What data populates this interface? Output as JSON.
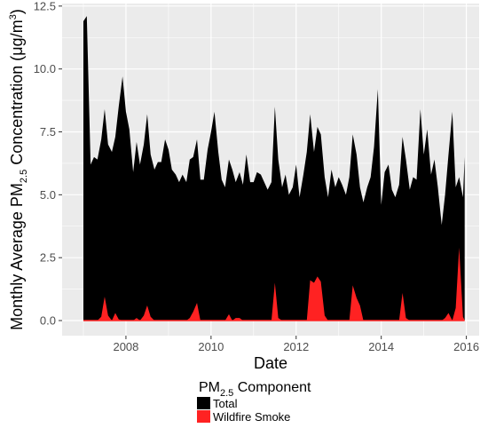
{
  "chart_data": {
    "type": "area",
    "title": "",
    "xlabel": "Date",
    "ylabel": {
      "pre": "Monthly Average PM",
      "sub": "2.5",
      "mid": " Concentration (",
      "unit": "μg/m",
      "sup": "3",
      "post": ")"
    },
    "xlim": [
      2006.5,
      2016.3
    ],
    "ylim": [
      -0.6,
      12.6
    ],
    "x_ticks": [
      2008,
      2010,
      2012,
      2014,
      2016
    ],
    "y_ticks": [
      0.0,
      2.5,
      5.0,
      7.5,
      10.0,
      12.5
    ],
    "y_tick_labels": [
      "0.0",
      "2.5",
      "5.0",
      "7.5",
      "10.0",
      "12.5"
    ],
    "x_tick_labels": [
      "2008",
      "2010",
      "2012",
      "2014",
      "2016"
    ],
    "grid": true,
    "legend": {
      "placement": "bottom",
      "title_pre": "PM",
      "title_sub": "2.5",
      "title_post": " Component",
      "entries": [
        "Total",
        "Wildfire Smoke"
      ]
    },
    "colors": {
      "total": "#000000",
      "smoke": "#ff2222",
      "panel": "#ebebeb",
      "grid": "#ffffff"
    },
    "series": [
      {
        "name": "Total",
        "x": [
          2007.0,
          2007.08,
          2007.17,
          2007.25,
          2007.33,
          2007.42,
          2007.5,
          2007.58,
          2007.67,
          2007.75,
          2007.83,
          2007.92,
          2008.0,
          2008.08,
          2008.17,
          2008.25,
          2008.33,
          2008.42,
          2008.5,
          2008.58,
          2008.67,
          2008.75,
          2008.83,
          2008.92,
          2009.0,
          2009.08,
          2009.17,
          2009.25,
          2009.33,
          2009.42,
          2009.5,
          2009.58,
          2009.67,
          2009.75,
          2009.83,
          2009.92,
          2010.0,
          2010.08,
          2010.17,
          2010.25,
          2010.33,
          2010.42,
          2010.5,
          2010.58,
          2010.67,
          2010.75,
          2010.83,
          2010.92,
          2011.0,
          2011.08,
          2011.17,
          2011.25,
          2011.33,
          2011.42,
          2011.5,
          2011.58,
          2011.67,
          2011.75,
          2011.83,
          2011.92,
          2012.0,
          2012.08,
          2012.17,
          2012.25,
          2012.33,
          2012.42,
          2012.5,
          2012.58,
          2012.67,
          2012.75,
          2012.83,
          2012.92,
          2013.0,
          2013.08,
          2013.17,
          2013.25,
          2013.33,
          2013.42,
          2013.5,
          2013.58,
          2013.67,
          2013.75,
          2013.83,
          2013.92,
          2014.0,
          2014.08,
          2014.17,
          2014.25,
          2014.33,
          2014.42,
          2014.5,
          2014.58,
          2014.67,
          2014.75,
          2014.83,
          2014.92,
          2015.0,
          2015.08,
          2015.17,
          2015.25,
          2015.33,
          2015.42,
          2015.5,
          2015.58,
          2015.67,
          2015.75,
          2015.83,
          2015.92
        ],
        "values": [
          11.9,
          12.1,
          6.2,
          6.5,
          6.4,
          7.2,
          8.4,
          7.0,
          6.7,
          7.3,
          8.5,
          9.7,
          8.3,
          7.6,
          5.9,
          7.1,
          6.2,
          7.0,
          8.2,
          6.6,
          6.0,
          6.3,
          6.3,
          7.2,
          6.8,
          6.0,
          5.8,
          5.5,
          5.8,
          5.5,
          6.4,
          6.5,
          7.2,
          5.6,
          5.6,
          6.8,
          7.5,
          8.3,
          6.7,
          5.6,
          5.3,
          6.4,
          6.0,
          5.5,
          5.9,
          5.4,
          6.6,
          5.5,
          5.5,
          5.9,
          5.8,
          5.5,
          5.2,
          5.5,
          8.5,
          6.4,
          5.3,
          5.8,
          5.0,
          5.3,
          6.2,
          4.9,
          5.8,
          6.7,
          8.2,
          6.7,
          7.7,
          7.4,
          5.7,
          4.9,
          6.0,
          5.3,
          5.7,
          5.4,
          5.0,
          5.7,
          7.4,
          6.6,
          5.3,
          4.7,
          5.3,
          5.7,
          6.9,
          9.2,
          4.6,
          5.9,
          6.2,
          5.2,
          4.9,
          5.4,
          7.3,
          6.4,
          5.2,
          5.7,
          5.6,
          8.4,
          6.6,
          7.6,
          5.8,
          6.4,
          5.3,
          3.8,
          5.0,
          6.6,
          8.3,
          5.3,
          5.7,
          4.9
        ],
        "tail": {
          "x": 2015.96,
          "value": 6.5
        }
      },
      {
        "name": "Wildfire Smoke",
        "x": [
          2007.0,
          2007.08,
          2007.17,
          2007.25,
          2007.33,
          2007.42,
          2007.5,
          2007.58,
          2007.67,
          2007.75,
          2007.83,
          2007.92,
          2008.0,
          2008.08,
          2008.17,
          2008.25,
          2008.33,
          2008.42,
          2008.5,
          2008.58,
          2008.67,
          2008.75,
          2008.83,
          2008.92,
          2009.0,
          2009.08,
          2009.17,
          2009.25,
          2009.33,
          2009.42,
          2009.5,
          2009.58,
          2009.67,
          2009.75,
          2009.83,
          2009.92,
          2010.0,
          2010.08,
          2010.17,
          2010.25,
          2010.33,
          2010.42,
          2010.5,
          2010.58,
          2010.67,
          2010.75,
          2010.83,
          2010.92,
          2011.0,
          2011.08,
          2011.17,
          2011.25,
          2011.33,
          2011.42,
          2011.5,
          2011.58,
          2011.67,
          2011.75,
          2011.83,
          2011.92,
          2012.0,
          2012.08,
          2012.17,
          2012.25,
          2012.33,
          2012.42,
          2012.5,
          2012.58,
          2012.67,
          2012.75,
          2012.83,
          2012.92,
          2013.0,
          2013.08,
          2013.17,
          2013.25,
          2013.33,
          2013.42,
          2013.5,
          2013.58,
          2013.67,
          2013.75,
          2013.83,
          2013.92,
          2014.0,
          2014.08,
          2014.17,
          2014.25,
          2014.33,
          2014.42,
          2014.5,
          2014.58,
          2014.67,
          2014.75,
          2014.83,
          2014.92,
          2015.0,
          2015.08,
          2015.17,
          2015.25,
          2015.33,
          2015.42,
          2015.5,
          2015.58,
          2015.67,
          2015.75,
          2015.83,
          2015.92
        ],
        "values": [
          0.0,
          0.0,
          0.0,
          0.0,
          0.0,
          0.15,
          0.95,
          0.2,
          0.0,
          0.3,
          0.05,
          0.0,
          0.0,
          0.0,
          0.0,
          0.1,
          0.0,
          0.2,
          0.6,
          0.15,
          0.0,
          0.0,
          0.0,
          0.0,
          0.0,
          0.0,
          0.0,
          0.0,
          0.0,
          0.0,
          0.1,
          0.35,
          0.7,
          0.0,
          0.0,
          0.0,
          0.0,
          0.0,
          0.0,
          0.0,
          0.0,
          0.25,
          0.0,
          0.1,
          0.1,
          0.0,
          0.0,
          0.0,
          0.0,
          0.0,
          0.0,
          0.0,
          0.0,
          0.0,
          1.5,
          0.1,
          0.0,
          0.0,
          0.0,
          0.0,
          0.0,
          0.0,
          0.0,
          0.0,
          1.6,
          1.5,
          1.75,
          1.55,
          0.2,
          0.0,
          0.0,
          0.0,
          0.0,
          0.0,
          0.0,
          0.0,
          1.4,
          0.9,
          0.6,
          0.0,
          0.0,
          0.0,
          0.0,
          0.0,
          0.0,
          0.0,
          0.0,
          0.0,
          0.0,
          0.0,
          1.1,
          0.1,
          0.0,
          0.0,
          0.0,
          0.0,
          0.0,
          0.0,
          0.0,
          0.0,
          0.0,
          0.0,
          0.1,
          0.3,
          0.0,
          0.5,
          2.9,
          0.15
        ],
        "tail": {
          "x": 2015.96,
          "value": 0.0
        }
      }
    ]
  }
}
